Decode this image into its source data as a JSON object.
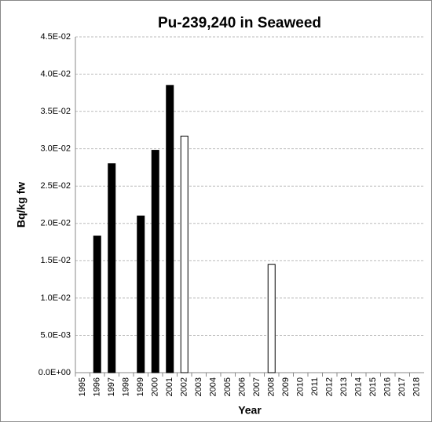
{
  "chart_data": {
    "type": "bar",
    "title": "Pu-239,240 in Seaweed",
    "x_label": "Year",
    "y_label": "Bq/kg fw",
    "categories": [
      "1995",
      "1996",
      "1997",
      "1998",
      "1999",
      "2000",
      "2001",
      "2002",
      "2003",
      "2004",
      "2005",
      "2006",
      "2007",
      "2008",
      "2009",
      "2010",
      "2011",
      "2012",
      "2013",
      "2014",
      "2015",
      "2016",
      "2017",
      "2018"
    ],
    "values": [
      null,
      0.0183,
      0.028,
      null,
      0.021,
      0.0298,
      0.0385,
      0.0317,
      null,
      null,
      null,
      null,
      null,
      0.0145,
      null,
      null,
      null,
      null,
      null,
      null,
      null,
      null,
      null,
      null
    ],
    "colors": [
      null,
      "#000000",
      "#000000",
      null,
      "#000000",
      "#000000",
      "#000000",
      "#ffffff",
      null,
      null,
      null,
      null,
      null,
      "#ffffff",
      null,
      null,
      null,
      null,
      null,
      null,
      null,
      null,
      null,
      null
    ],
    "ylim": [
      0,
      0.045
    ],
    "yticks": [
      {
        "value": 0,
        "label": "0.0E+00"
      },
      {
        "value": 0.005,
        "label": "5.0E-03"
      },
      {
        "value": 0.01,
        "label": "1.0E-02"
      },
      {
        "value": 0.015,
        "label": "1.5E-02"
      },
      {
        "value": 0.02,
        "label": "2.0E-02"
      },
      {
        "value": 0.025,
        "label": "2.5E-02"
      },
      {
        "value": 0.03,
        "label": "3.0E-02"
      },
      {
        "value": 0.035,
        "label": "3.5E-02"
      },
      {
        "value": 0.04,
        "label": "4.0E-02"
      },
      {
        "value": 0.045,
        "label": "4.5E-02"
      }
    ],
    "grid": true
  }
}
